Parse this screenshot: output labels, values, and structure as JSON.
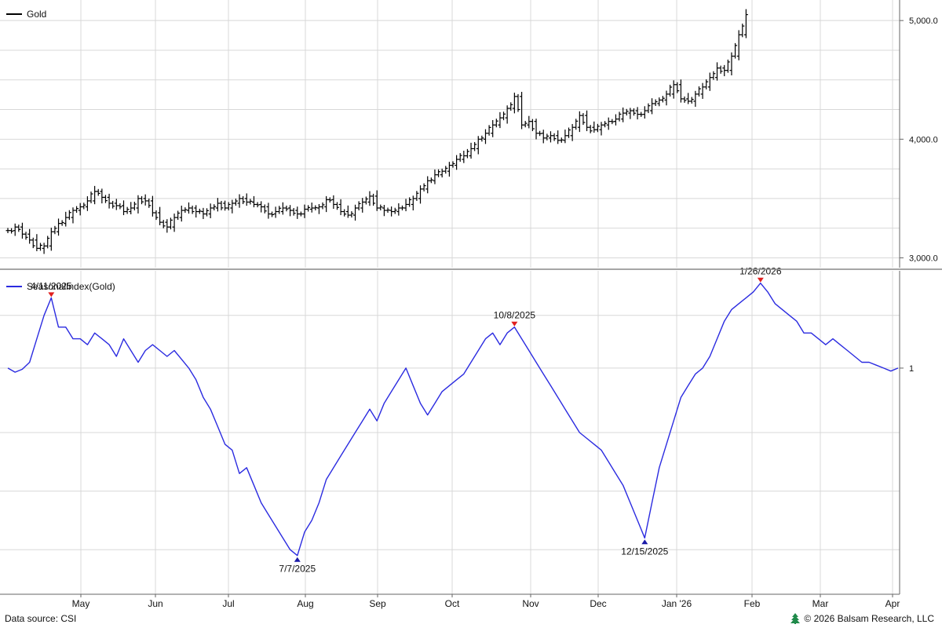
{
  "chart_data": [
    {
      "type": "ohlc",
      "legend": "Gold",
      "legend_color": "#000000",
      "y_ticks": [
        3000,
        4000,
        5000
      ],
      "y_tick_labels": [
        "3,000.0",
        "4,000.0",
        "5,000.0"
      ],
      "ylim": [
        2970,
        5160
      ],
      "grid": true,
      "x_tick_labels": [
        "May",
        "Jun",
        "Jul",
        "Aug",
        "Sep",
        "Oct",
        "Nov",
        "Dec",
        "Jan '26",
        "Feb",
        "Mar",
        "Apr"
      ],
      "close_series": [
        [
          0,
          3230
        ],
        [
          2,
          3260
        ],
        [
          4,
          3200
        ],
        [
          6,
          3150
        ],
        [
          8,
          3080
        ],
        [
          10,
          3100
        ],
        [
          12,
          3220
        ],
        [
          14,
          3290
        ],
        [
          16,
          3340
        ],
        [
          18,
          3400
        ],
        [
          20,
          3430
        ],
        [
          22,
          3480
        ],
        [
          24,
          3560
        ],
        [
          26,
          3510
        ],
        [
          28,
          3460
        ],
        [
          30,
          3440
        ],
        [
          32,
          3390
        ],
        [
          34,
          3420
        ],
        [
          36,
          3500
        ],
        [
          38,
          3480
        ],
        [
          40,
          3380
        ],
        [
          42,
          3300
        ],
        [
          44,
          3260
        ],
        [
          46,
          3340
        ],
        [
          48,
          3400
        ],
        [
          50,
          3420
        ],
        [
          52,
          3390
        ],
        [
          54,
          3370
        ],
        [
          56,
          3420
        ],
        [
          58,
          3460
        ],
        [
          60,
          3420
        ],
        [
          62,
          3460
        ],
        [
          64,
          3500
        ],
        [
          66,
          3470
        ],
        [
          68,
          3450
        ],
        [
          70,
          3430
        ],
        [
          72,
          3370
        ],
        [
          74,
          3390
        ],
        [
          76,
          3420
        ],
        [
          78,
          3400
        ],
        [
          80,
          3370
        ],
        [
          82,
          3410
        ],
        [
          84,
          3420
        ],
        [
          86,
          3430
        ],
        [
          88,
          3490
        ],
        [
          90,
          3450
        ],
        [
          92,
          3390
        ],
        [
          94,
          3360
        ],
        [
          96,
          3420
        ],
        [
          98,
          3470
        ],
        [
          100,
          3520
        ],
        [
          102,
          3420
        ],
        [
          104,
          3400
        ],
        [
          106,
          3390
        ],
        [
          108,
          3420
        ],
        [
          110,
          3450
        ],
        [
          112,
          3500
        ],
        [
          114,
          3580
        ],
        [
          116,
          3650
        ],
        [
          118,
          3700
        ],
        [
          120,
          3730
        ],
        [
          122,
          3780
        ],
        [
          124,
          3830
        ],
        [
          126,
          3860
        ],
        [
          128,
          3920
        ],
        [
          130,
          4000
        ],
        [
          132,
          4050
        ],
        [
          134,
          4120
        ],
        [
          136,
          4180
        ],
        [
          138,
          4260
        ],
        [
          140,
          4360
        ],
        [
          142,
          4120
        ],
        [
          144,
          4150
        ],
        [
          146,
          4050
        ],
        [
          148,
          4010
        ],
        [
          150,
          4030
        ],
        [
          152,
          3990
        ],
        [
          154,
          4030
        ],
        [
          156,
          4100
        ],
        [
          158,
          4200
        ],
        [
          160,
          4100
        ],
        [
          162,
          4080
        ],
        [
          164,
          4120
        ],
        [
          166,
          4150
        ],
        [
          168,
          4170
        ],
        [
          170,
          4220
        ],
        [
          172,
          4240
        ],
        [
          174,
          4210
        ],
        [
          176,
          4240
        ],
        [
          178,
          4300
        ],
        [
          180,
          4330
        ],
        [
          182,
          4380
        ],
        [
          184,
          4460
        ],
        [
          186,
          4340
        ],
        [
          188,
          4320
        ],
        [
          190,
          4380
        ],
        [
          192,
          4440
        ],
        [
          194,
          4520
        ],
        [
          196,
          4600
        ],
        [
          198,
          4580
        ],
        [
          200,
          4700
        ],
        [
          202,
          4880
        ],
        [
          204,
          5050
        ]
      ]
    },
    {
      "type": "line",
      "legend": "SeasonalIndex(Gold)",
      "legend_color": "#2b2be0",
      "y_ticks": [
        1
      ],
      "y_tick_labels": [
        "1"
      ],
      "ylim": [
        -36,
        16
      ],
      "grid": true,
      "x_tick_labels": [
        "May",
        "Jun",
        "Jul",
        "Aug",
        "Sep",
        "Oct",
        "Nov",
        "Dec",
        "Jan '26",
        "Feb",
        "Mar",
        "Apr"
      ],
      "series": [
        [
          0,
          1
        ],
        [
          2,
          0.3
        ],
        [
          4,
          0.8
        ],
        [
          6,
          2
        ],
        [
          8,
          6
        ],
        [
          10,
          10
        ],
        [
          12,
          13
        ],
        [
          14,
          8
        ],
        [
          16,
          8
        ],
        [
          18,
          6
        ],
        [
          20,
          6
        ],
        [
          22,
          5
        ],
        [
          24,
          7
        ],
        [
          26,
          6
        ],
        [
          28,
          5
        ],
        [
          30,
          3
        ],
        [
          32,
          6
        ],
        [
          34,
          4
        ],
        [
          36,
          2
        ],
        [
          38,
          4
        ],
        [
          40,
          5
        ],
        [
          42,
          4
        ],
        [
          44,
          3
        ],
        [
          46,
          4
        ],
        [
          48,
          2.5
        ],
        [
          50,
          1
        ],
        [
          52,
          -1
        ],
        [
          54,
          -4
        ],
        [
          56,
          -6
        ],
        [
          58,
          -9
        ],
        [
          60,
          -12
        ],
        [
          62,
          -13
        ],
        [
          64,
          -17
        ],
        [
          66,
          -16
        ],
        [
          68,
          -19
        ],
        [
          70,
          -22
        ],
        [
          72,
          -24
        ],
        [
          74,
          -26
        ],
        [
          76,
          -28
        ],
        [
          78,
          -30
        ],
        [
          80,
          -31
        ],
        [
          82,
          -27
        ],
        [
          84,
          -25
        ],
        [
          86,
          -22
        ],
        [
          88,
          -18
        ],
        [
          90,
          -16
        ],
        [
          92,
          -14
        ],
        [
          94,
          -12
        ],
        [
          96,
          -10
        ],
        [
          98,
          -8
        ],
        [
          100,
          -6
        ],
        [
          102,
          -8
        ],
        [
          104,
          -5
        ],
        [
          106,
          -3
        ],
        [
          108,
          -1
        ],
        [
          110,
          1
        ],
        [
          112,
          -2
        ],
        [
          114,
          -5
        ],
        [
          116,
          -7
        ],
        [
          118,
          -5
        ],
        [
          120,
          -3
        ],
        [
          122,
          -2
        ],
        [
          124,
          -1
        ],
        [
          126,
          0
        ],
        [
          128,
          2
        ],
        [
          130,
          4
        ],
        [
          132,
          6
        ],
        [
          134,
          7
        ],
        [
          136,
          5
        ],
        [
          138,
          7
        ],
        [
          140,
          8
        ],
        [
          142,
          6
        ],
        [
          144,
          4
        ],
        [
          146,
          2
        ],
        [
          148,
          0
        ],
        [
          150,
          -2
        ],
        [
          152,
          -4
        ],
        [
          154,
          -6
        ],
        [
          156,
          -8
        ],
        [
          158,
          -10
        ],
        [
          160,
          -11
        ],
        [
          162,
          -12
        ],
        [
          164,
          -13
        ],
        [
          166,
          -15
        ],
        [
          168,
          -17
        ],
        [
          170,
          -19
        ],
        [
          172,
          -22
        ],
        [
          174,
          -25
        ],
        [
          176,
          -28
        ],
        [
          178,
          -22
        ],
        [
          180,
          -16
        ],
        [
          182,
          -12
        ],
        [
          184,
          -8
        ],
        [
          186,
          -4
        ],
        [
          188,
          -2
        ],
        [
          190,
          0
        ],
        [
          192,
          1
        ],
        [
          194,
          3
        ],
        [
          196,
          6
        ],
        [
          198,
          9
        ],
        [
          200,
          11
        ],
        [
          202,
          12
        ],
        [
          204,
          13
        ],
        [
          206,
          14
        ],
        [
          208,
          15.5
        ],
        [
          210,
          14
        ],
        [
          212,
          12
        ],
        [
          214,
          11
        ],
        [
          216,
          10
        ],
        [
          218,
          9
        ],
        [
          220,
          7
        ],
        [
          222,
          7
        ],
        [
          224,
          6
        ],
        [
          226,
          5
        ],
        [
          228,
          6
        ],
        [
          230,
          5
        ],
        [
          232,
          4
        ],
        [
          234,
          3
        ],
        [
          236,
          2
        ],
        [
          238,
          2
        ],
        [
          240,
          1.5
        ],
        [
          242,
          1
        ],
        [
          244,
          0.5
        ],
        [
          246,
          1
        ]
      ],
      "annotations": [
        {
          "label": "4/11/2025",
          "marker": "high",
          "x": 12
        },
        {
          "label": "7/7/2025",
          "marker": "low",
          "x": 80
        },
        {
          "label": "10/8/2025",
          "marker": "high",
          "x": 140
        },
        {
          "label": "12/15/2025",
          "marker": "low",
          "x": 176
        },
        {
          "label": "1/26/2026",
          "marker": "high",
          "x": 208
        }
      ]
    }
  ],
  "footer": {
    "source": "Data source: CSI",
    "copyright": "© 2026 Balsam Research, LLC"
  },
  "colors": {
    "price": "#000000",
    "seasonal": "#2b2be0",
    "high_marker": "#e02020",
    "low_marker": "#1a1aa8",
    "grid": "#d8d8d8",
    "logo": "#1f8a4a"
  },
  "icons": {
    "logo": "tree-icon"
  }
}
